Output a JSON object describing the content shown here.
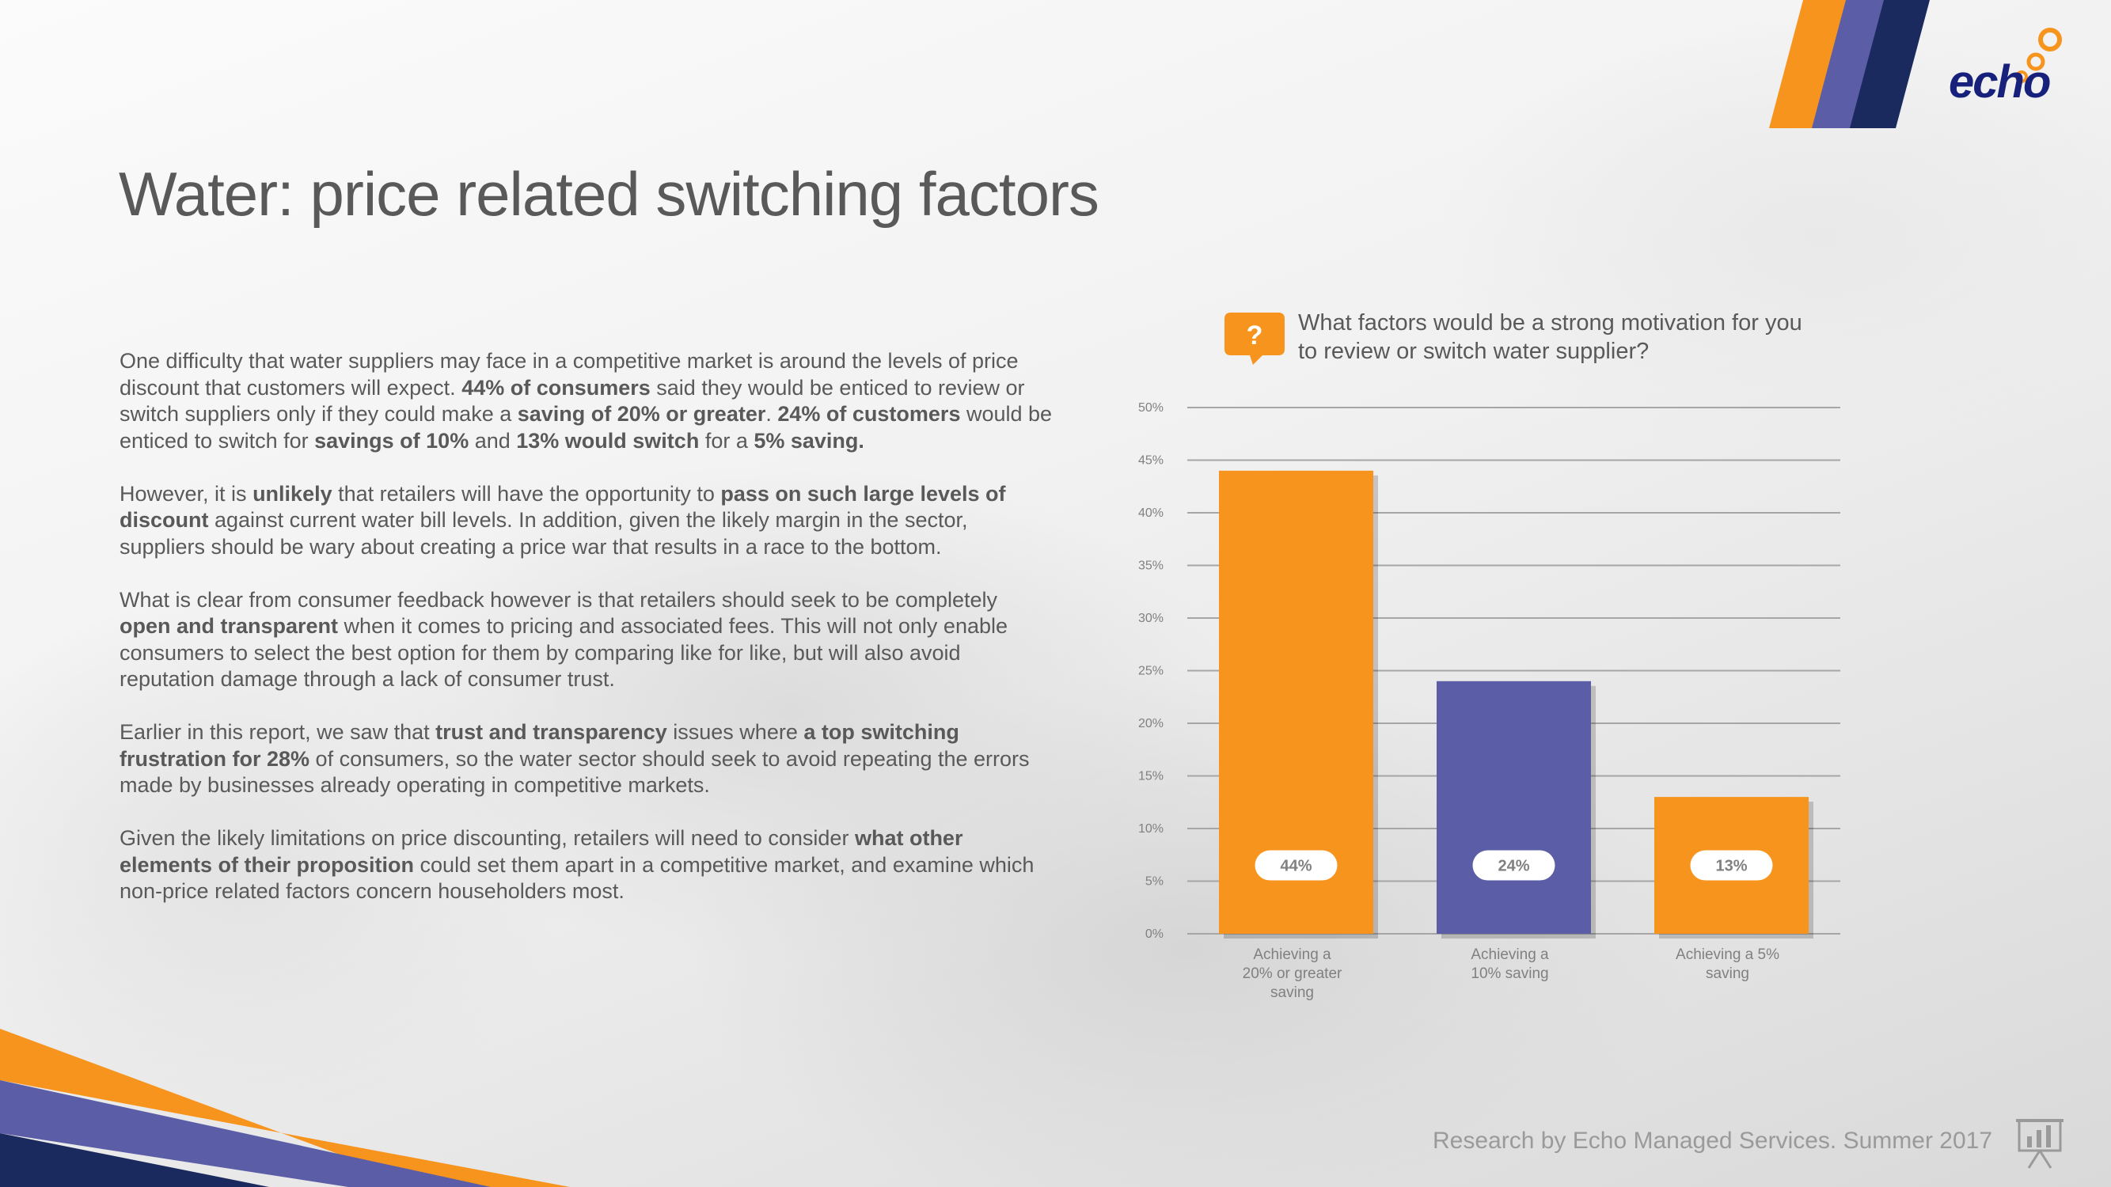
{
  "title": "Water: price related switching factors",
  "paragraphs": [
    [
      {
        "t": "One difficulty that water suppliers may face in a competitive market is around the levels of price discount that customers will expect. ",
        "b": false
      },
      {
        "t": "44% of consumers",
        "b": true
      },
      {
        "t": " said they would be enticed to review or switch suppliers only if they could make a ",
        "b": false
      },
      {
        "t": "saving of 20% or greater",
        "b": true
      },
      {
        "t": ". ",
        "b": false
      },
      {
        "t": "24% of customers",
        "b": true
      },
      {
        "t": " would be enticed to switch for ",
        "b": false
      },
      {
        "t": "savings of 10%",
        "b": true
      },
      {
        "t": " and ",
        "b": false
      },
      {
        "t": "13% would switch",
        "b": true
      },
      {
        "t": " for a ",
        "b": false
      },
      {
        "t": "5% saving.",
        "b": true
      }
    ],
    [
      {
        "t": "However, it is ",
        "b": false
      },
      {
        "t": "unlikely",
        "b": true
      },
      {
        "t": " that retailers will have the opportunity to ",
        "b": false
      },
      {
        "t": "pass on such large levels of discount",
        "b": true
      },
      {
        "t": " against current water bill levels.  In addition, given the likely margin in the sector, suppliers should be wary about creating a price war that results in a race to the bottom.",
        "b": false
      }
    ],
    [
      {
        "t": "What is clear from consumer feedback however is that retailers should seek to be completely ",
        "b": false
      },
      {
        "t": "open and transparent",
        "b": true
      },
      {
        "t": " when it comes to pricing and associated fees.  This will not only enable consumers to select the best option for them by comparing like for like, but will also avoid reputation damage through a lack of consumer trust.",
        "b": false
      }
    ],
    [
      {
        "t": "Earlier in this report, we saw that ",
        "b": false
      },
      {
        "t": "trust and transparency",
        "b": true
      },
      {
        "t": " issues where ",
        "b": false
      },
      {
        "t": "a top switching frustration for 28%",
        "b": true
      },
      {
        "t": " of consumers, so the water sector should seek to avoid repeating the errors made by businesses already operating in competitive markets.",
        "b": false
      }
    ],
    [
      {
        "t": "Given the likely limitations on price discounting, retailers will need to consider ",
        "b": false
      },
      {
        "t": "what other elements of their proposition",
        "b": true
      },
      {
        "t": " could set them apart in a competitive market, and examine which non-price related factors concern householders most.",
        "b": false
      }
    ]
  ],
  "question": {
    "icon": "?",
    "text": "What factors would be a strong motivation for you to review or switch water supplier?"
  },
  "footer": "Research by Echo Managed Services. Summer 2017",
  "logo": {
    "text": "echo"
  },
  "colors": {
    "orange": "#F7941D",
    "purple": "#5B5EA6",
    "navy": "#1B2A5E",
    "text": "#595959"
  },
  "chart_data": {
    "type": "bar",
    "categories": [
      [
        "Achieving a",
        "20% or greater",
        "saving"
      ],
      [
        "Achieving a",
        "10% saving"
      ],
      [
        "Achieving a 5%",
        "saving"
      ]
    ],
    "values": [
      44,
      24,
      13
    ],
    "data_labels": [
      "44%",
      "24%",
      "13%"
    ],
    "bar_colors": [
      "#F7941D",
      "#5B5EA6",
      "#F7941D"
    ],
    "ylim": [
      0,
      50
    ],
    "yticks": [
      0,
      5,
      10,
      15,
      20,
      25,
      30,
      35,
      40,
      45,
      50
    ],
    "ytick_labels": [
      "0%",
      "5%",
      "10%",
      "15%",
      "20%",
      "25%",
      "30%",
      "35%",
      "40%",
      "45%",
      "50%"
    ],
    "grid": true,
    "legend": "none"
  }
}
